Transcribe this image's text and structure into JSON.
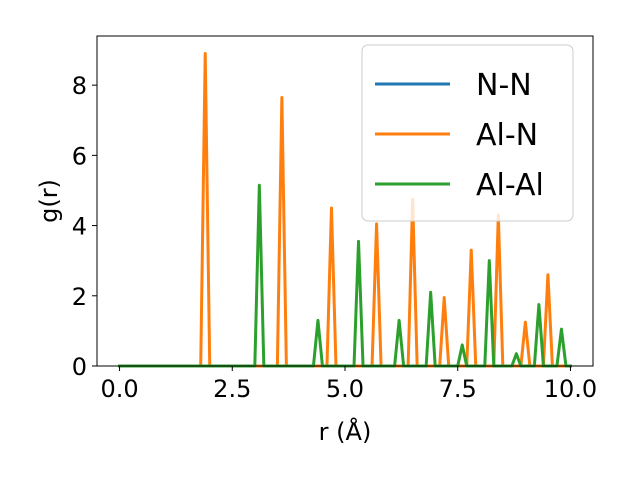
{
  "chart_data": {
    "type": "line",
    "title": "",
    "xlabel": "r (Å)",
    "ylabel": "g(r)",
    "xlim": [
      -0.5,
      10.5
    ],
    "ylim": [
      0,
      9.4
    ],
    "xticks": [
      0.0,
      2.5,
      5.0,
      7.5,
      10.0
    ],
    "xtick_labels": [
      "0.0",
      "2.5",
      "5.0",
      "7.5",
      "10.0"
    ],
    "yticks": [
      0,
      2,
      4,
      6,
      8
    ],
    "ytick_labels": [
      "0",
      "2",
      "4",
      "6",
      "8"
    ],
    "grid": false,
    "legend": "upper right",
    "series": [
      {
        "name": "N-N",
        "color": "#1f77b4",
        "x": [
          0.0,
          10.0
        ],
        "y": [
          0.0,
          0.0
        ]
      },
      {
        "name": "Al-N",
        "color": "#ff7f0e",
        "x": [
          0.0,
          1.8,
          1.9,
          2.0,
          3.5,
          3.6,
          3.7,
          4.6,
          4.7,
          4.8,
          5.6,
          5.7,
          5.8,
          6.4,
          6.5,
          6.6,
          7.1,
          7.2,
          7.3,
          7.7,
          7.8,
          7.9,
          8.3,
          8.4,
          8.5,
          8.9,
          9.0,
          9.1,
          9.4,
          9.5,
          9.6,
          10.0
        ],
        "y": [
          0.0,
          0.0,
          8.9,
          0.0,
          0.0,
          7.65,
          0.0,
          0.0,
          4.5,
          0.0,
          0.0,
          4.05,
          0.0,
          0.0,
          4.75,
          0.0,
          0.0,
          1.95,
          0.0,
          0.0,
          3.3,
          0.0,
          0.0,
          4.3,
          0.0,
          0.0,
          1.25,
          0.0,
          0.0,
          2.6,
          0.0,
          0.0
        ]
      },
      {
        "name": "Al-Al",
        "color": "#2ca02c",
        "x": [
          0.0,
          3.0,
          3.1,
          3.2,
          4.3,
          4.4,
          4.5,
          5.2,
          5.3,
          5.4,
          6.1,
          6.2,
          6.3,
          6.8,
          6.9,
          7.0,
          7.5,
          7.6,
          7.7,
          8.1,
          8.2,
          8.3,
          8.7,
          8.8,
          8.9,
          9.2,
          9.3,
          9.4,
          9.7,
          9.8,
          9.9,
          10.0
        ],
        "y": [
          0.0,
          0.0,
          5.15,
          0.0,
          0.0,
          1.3,
          0.0,
          0.0,
          3.55,
          0.0,
          0.0,
          1.3,
          0.0,
          0.0,
          2.1,
          0.0,
          0.0,
          0.6,
          0.0,
          0.0,
          3.0,
          0.0,
          0.0,
          0.35,
          0.0,
          0.0,
          1.75,
          0.0,
          0.0,
          1.05,
          0.0,
          0.0
        ]
      }
    ]
  }
}
